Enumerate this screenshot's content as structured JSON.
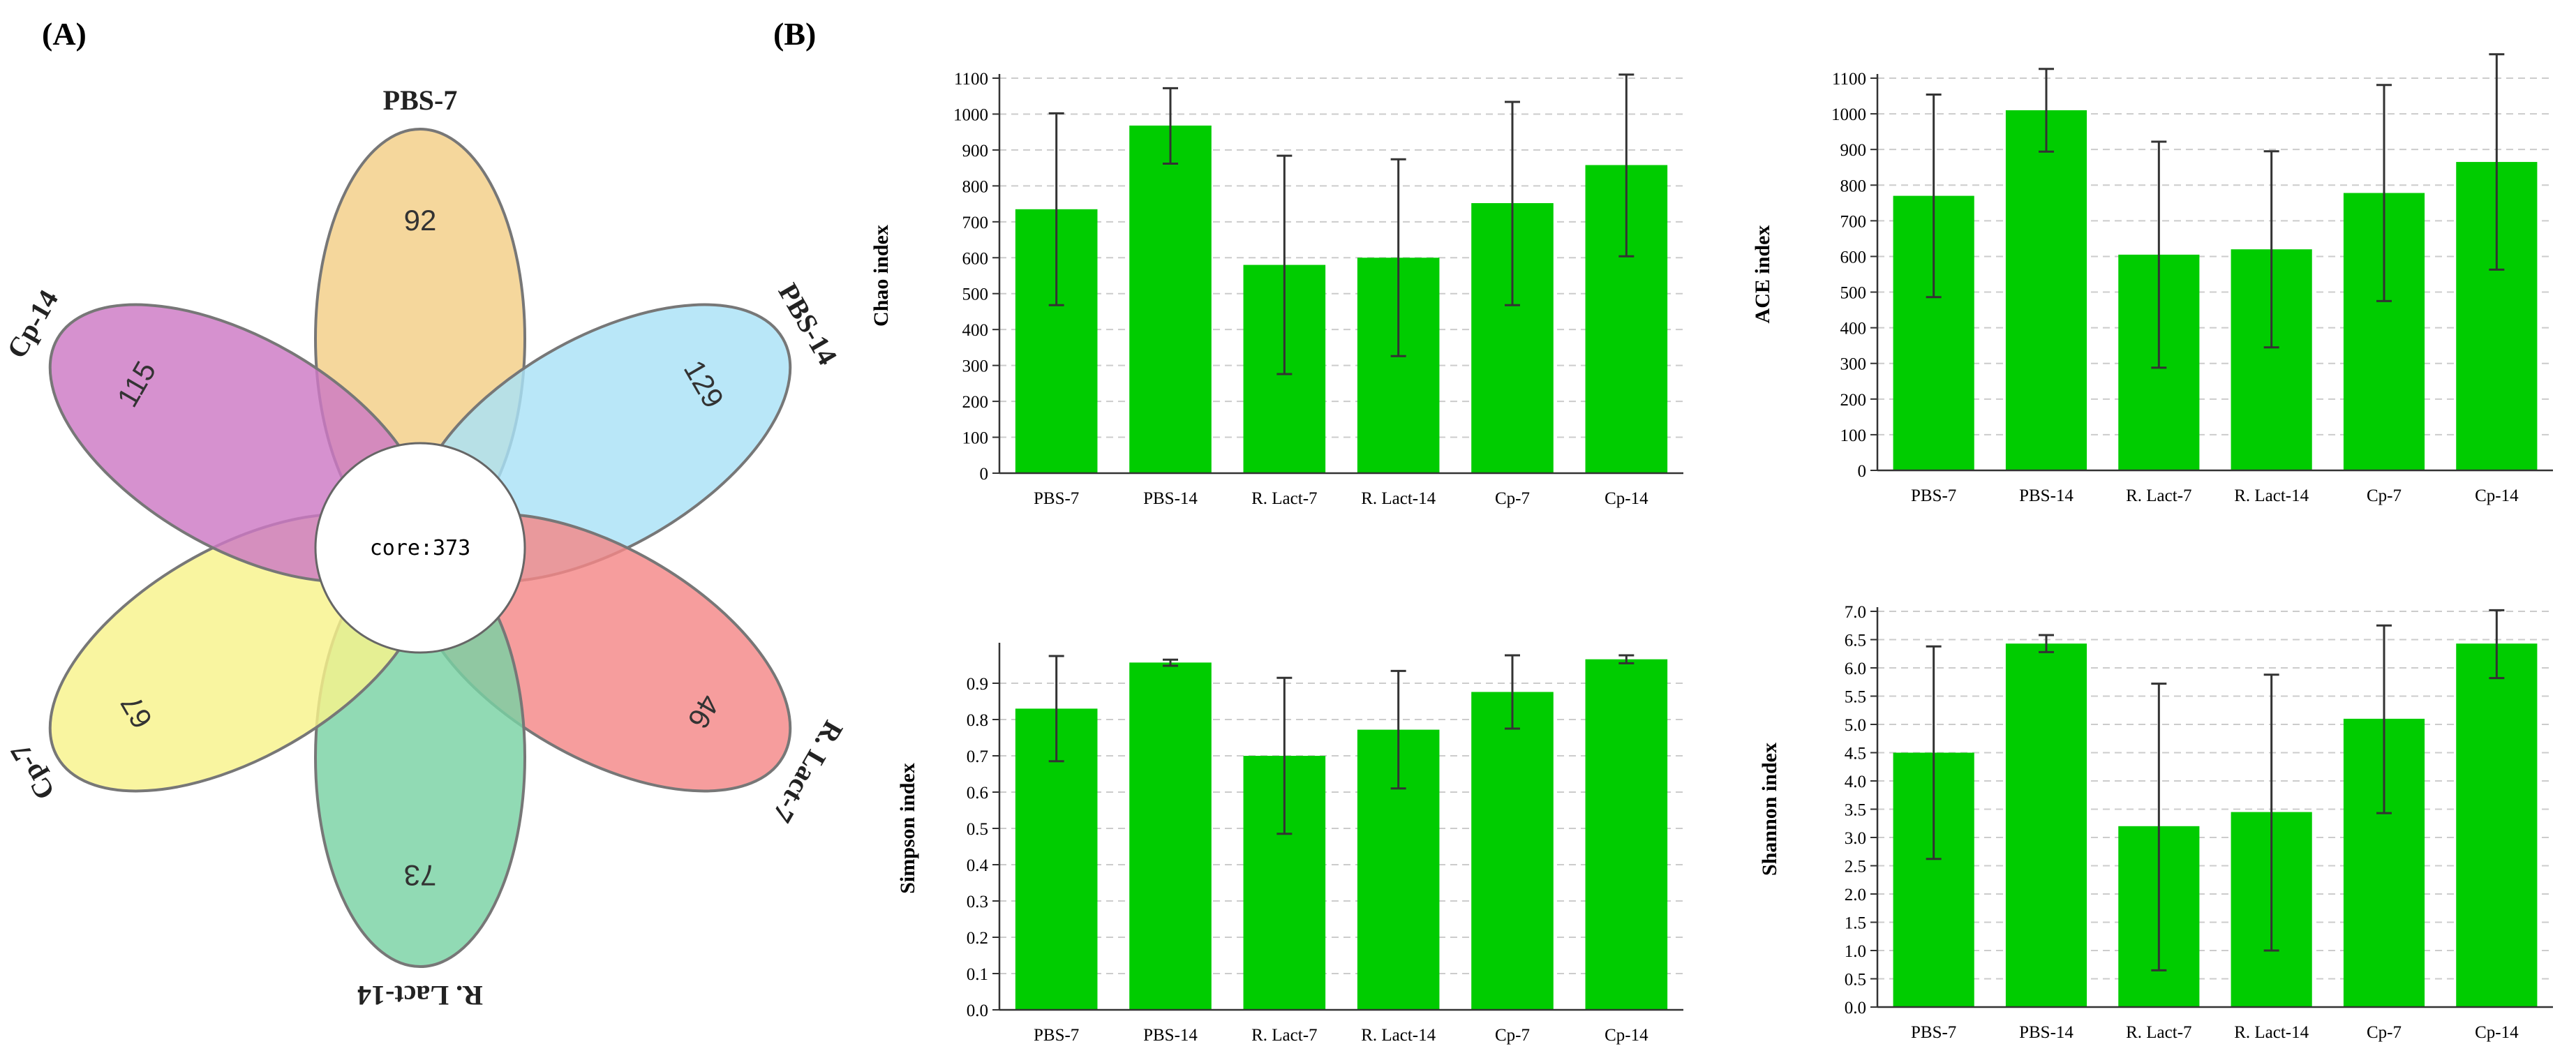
{
  "panels": {
    "a_label": "(A)",
    "b_label": "(B)"
  },
  "venn": {
    "core_label": "core:373",
    "petals": [
      {
        "name": "PBS-7",
        "count": "92",
        "color": "#f3ce86",
        "angle": 0
      },
      {
        "name": "PBS-14",
        "count": "129",
        "color": "#a9e2f6",
        "angle": 60
      },
      {
        "name": "R. Lact-7",
        "count": "46",
        "color": "#f48888",
        "angle": 120
      },
      {
        "name": "R. Lact-14",
        "count": "73",
        "color": "#79d2a3",
        "angle": 180
      },
      {
        "name": "Cp-7",
        "count": "67",
        "color": "#f8f38b",
        "angle": 240
      },
      {
        "name": "Cp-14",
        "count": "115",
        "color": "#cd79c4",
        "angle": 300
      }
    ]
  },
  "colors": {
    "bar": "#00cc00",
    "error": "#333333",
    "grid": "#cccccc",
    "axis": "#333333"
  },
  "chart_data": [
    {
      "type": "bar",
      "title": "",
      "xlabel": "",
      "ylabel": "Chao index",
      "categories": [
        "PBS-7",
        "PBS-14",
        "R. Lact-7",
        "R. Lact-14",
        "Cp-7",
        "Cp-14"
      ],
      "values": [
        735,
        968,
        580,
        600,
        752,
        858
      ],
      "error_low": [
        468,
        862,
        276,
        326,
        468,
        604
      ],
      "error_high": [
        1002,
        1072,
        884,
        874,
        1034,
        1110
      ],
      "ylim": [
        0,
        1100
      ],
      "yticks": [
        "0",
        "100",
        "200",
        "300",
        "400",
        "500",
        "600",
        "700",
        "800",
        "900",
        "1000",
        "1100"
      ],
      "grid": true
    },
    {
      "type": "bar",
      "title": "",
      "xlabel": "",
      "ylabel": "ACE index",
      "categories": [
        "PBS-7",
        "PBS-14",
        "R. Lact-7",
        "R. Lact-14",
        "Cp-7",
        "Cp-14"
      ],
      "values": [
        770,
        1010,
        605,
        620,
        778,
        865
      ],
      "error_low": [
        486,
        894,
        288,
        345,
        475,
        563
      ],
      "error_high": [
        1054,
        1126,
        922,
        895,
        1081,
        1167
      ],
      "ylim": [
        0,
        1100
      ],
      "yticks": [
        "0",
        "100",
        "200",
        "300",
        "400",
        "500",
        "600",
        "700",
        "800",
        "900",
        "1000",
        "1100"
      ],
      "grid": true
    },
    {
      "type": "bar",
      "title": "",
      "xlabel": "",
      "ylabel": "Simpson index",
      "categories": [
        "PBS-7",
        "PBS-14",
        "R. Lact-7",
        "R. Lact-14",
        "Cp-7",
        "Cp-14"
      ],
      "values": [
        0.83,
        0.957,
        0.7,
        0.772,
        0.876,
        0.966
      ],
      "error_low": [
        0.685,
        0.948,
        0.485,
        0.61,
        0.775,
        0.955
      ],
      "error_high": [
        0.975,
        0.965,
        0.915,
        0.934,
        0.977,
        0.977
      ],
      "ylim": [
        0,
        1.0
      ],
      "yticks": [
        "0.0",
        "0.1",
        "0.2",
        "0.3",
        "0.4",
        "0.5",
        "0.6",
        "0.7",
        "0.8",
        "0.9"
      ],
      "grid": true
    },
    {
      "type": "bar",
      "title": "",
      "xlabel": "",
      "ylabel": "Shannon index",
      "categories": [
        "PBS-7",
        "PBS-14",
        "R. Lact-7",
        "R. Lact-14",
        "Cp-7",
        "Cp-14"
      ],
      "values": [
        4.5,
        6.43,
        3.2,
        3.45,
        5.1,
        6.43
      ],
      "error_low": [
        2.62,
        6.28,
        0.65,
        1.0,
        3.43,
        5.82
      ],
      "error_high": [
        6.38,
        6.58,
        5.72,
        5.88,
        6.75,
        7.02
      ],
      "ylim": [
        0,
        7.0
      ],
      "yticks": [
        "0.0",
        "0.5",
        "1.0",
        "1.5",
        "2.0",
        "2.5",
        "3.0",
        "3.5",
        "4.0",
        "4.5",
        "5.0",
        "5.5",
        "6.0",
        "6.5",
        "7.0"
      ],
      "grid": true
    }
  ]
}
